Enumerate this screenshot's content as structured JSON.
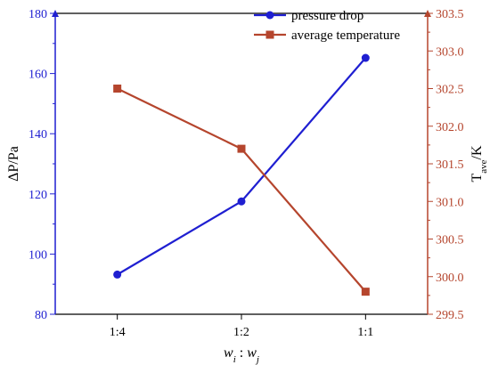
{
  "chart_data": {
    "type": "line",
    "categories": [
      "1:4",
      "1:2",
      "1:1"
    ],
    "xlabel": {
      "base1": "w",
      "sub1": "i",
      "sep": " : ",
      "base2": "w",
      "sub2": "j"
    },
    "y_left": {
      "label": "ΔP/Pa",
      "ylim": [
        80,
        180
      ],
      "ticks": [
        "80",
        "100",
        "120",
        "140",
        "160",
        "180"
      ],
      "color": "#1f1fd1"
    },
    "y_right": {
      "label_base": "T",
      "label_sub": "ave",
      "label_tail": "/K",
      "ylim": [
        299.5,
        303.5
      ],
      "ticks": [
        "299.5",
        "300.0",
        "300.5",
        "301.0",
        "301.5",
        "302.0",
        "302.5",
        "303.0",
        "303.5"
      ],
      "color": "#b5452d"
    },
    "series": [
      {
        "name": "pressure drop",
        "axis": "left",
        "marker": "circle",
        "color": "#1f1fd1",
        "values": [
          93.2,
          117.5,
          165.2
        ]
      },
      {
        "name": "average temperature",
        "axis": "right",
        "marker": "square",
        "color": "#b5452d",
        "values": [
          302.5,
          301.7,
          299.8
        ]
      }
    ],
    "legend": "top-right",
    "grid": false
  }
}
